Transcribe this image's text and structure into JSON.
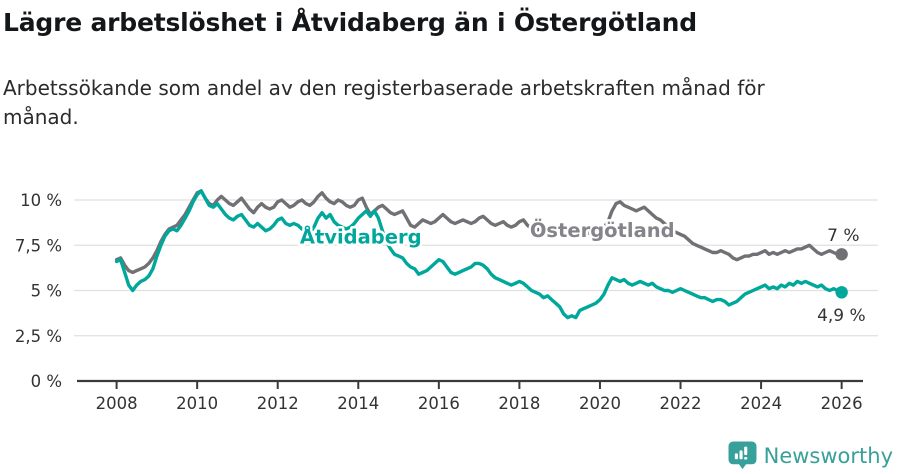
{
  "header": {
    "title": "Lägre arbetslöshet i Åtvidaberg än i Östergötland",
    "subtitle_lines": [
      "Arbetssökande som andel av den registerbaserade arbetskraften månad för",
      "månad."
    ]
  },
  "footer": {
    "brand": "Newsworthy"
  },
  "colors": {
    "accent_teal": "#00a79b",
    "line_gray": "#717175",
    "label_gray": "#84848a",
    "axis_text": "#333333",
    "gridline": "#e0e0e0",
    "logo_teal": "#38a09a"
  },
  "chart_data": {
    "type": "line",
    "title": "Lägre arbetslöshet i Åtvidaberg än i Östergötland",
    "ylabel": "",
    "xlabel": "",
    "grid": true,
    "ylim": [
      0,
      11.3
    ],
    "x_start": 2008.0,
    "x_step": 0.1,
    "x_ticks": [
      2008,
      2010,
      2012,
      2014,
      2016,
      2018,
      2020,
      2022,
      2024,
      2026
    ],
    "y_ticks": [
      {
        "value": 0,
        "label": "0 %"
      },
      {
        "value": 2.5,
        "label": "2,5 %"
      },
      {
        "value": 5,
        "label": "5 %"
      },
      {
        "value": 7.5,
        "label": "7,5 %"
      },
      {
        "value": 10,
        "label": "10 %"
      }
    ],
    "series": [
      {
        "name": "Östergötland",
        "color": "#717175",
        "end_label": "7 %",
        "latest_value": 7.0,
        "values": [
          6.7,
          6.8,
          6.4,
          6.1,
          6.0,
          6.1,
          6.2,
          6.3,
          6.5,
          6.8,
          7.2,
          7.7,
          8.1,
          8.4,
          8.5,
          8.6,
          8.9,
          9.2,
          9.6,
          10.0,
          10.4,
          10.5,
          10.1,
          9.8,
          9.7,
          10.0,
          10.2,
          10.0,
          9.8,
          9.7,
          9.9,
          10.1,
          9.8,
          9.5,
          9.3,
          9.6,
          9.8,
          9.6,
          9.5,
          9.6,
          9.9,
          10.0,
          9.8,
          9.6,
          9.7,
          9.9,
          10.0,
          9.8,
          9.7,
          9.9,
          10.2,
          10.4,
          10.1,
          9.9,
          9.8,
          10.0,
          9.9,
          9.7,
          9.6,
          9.7,
          10.0,
          10.1,
          9.6,
          9.2,
          9.4,
          9.6,
          9.7,
          9.5,
          9.3,
          9.2,
          9.3,
          9.4,
          9.0,
          8.6,
          8.5,
          8.7,
          8.9,
          8.8,
          8.7,
          8.8,
          9.0,
          9.2,
          9.0,
          8.8,
          8.7,
          8.8,
          8.9,
          8.8,
          8.7,
          8.8,
          9.0,
          9.1,
          8.9,
          8.7,
          8.6,
          8.7,
          8.8,
          8.6,
          8.5,
          8.6,
          8.8,
          8.9,
          8.6,
          8.4,
          8.3,
          8.4,
          8.5,
          8.3,
          8.2,
          8.2,
          8.4,
          8.5,
          8.3,
          8.1,
          8.0,
          8.2,
          8.3,
          8.2,
          8.1,
          8.2,
          8.4,
          8.5,
          8.8,
          9.4,
          9.8,
          9.9,
          9.7,
          9.6,
          9.5,
          9.4,
          9.5,
          9.6,
          9.4,
          9.2,
          9.0,
          8.9,
          8.7,
          8.5,
          8.3,
          8.2,
          8.1,
          8.0,
          7.8,
          7.6,
          7.5,
          7.4,
          7.3,
          7.2,
          7.1,
          7.1,
          7.2,
          7.1,
          7.0,
          6.8,
          6.7,
          6.8,
          6.9,
          6.9,
          7.0,
          7.0,
          7.1,
          7.2,
          7.0,
          7.1,
          7.0,
          7.1,
          7.2,
          7.1,
          7.2,
          7.3,
          7.3,
          7.4,
          7.5,
          7.3,
          7.1,
          7.0,
          7.1,
          7.2,
          7.1,
          7.0,
          7.0
        ]
      },
      {
        "name": "Åtvidaberg",
        "color": "#00a79b",
        "end_label": "4,9 %",
        "latest_value": 4.9,
        "values": [
          6.6,
          6.7,
          6.0,
          5.3,
          5.0,
          5.3,
          5.5,
          5.6,
          5.8,
          6.2,
          6.9,
          7.5,
          8.0,
          8.3,
          8.4,
          8.3,
          8.6,
          9.0,
          9.4,
          9.9,
          10.3,
          10.5,
          10.1,
          9.7,
          9.6,
          9.8,
          9.5,
          9.2,
          9.0,
          8.9,
          9.1,
          9.2,
          8.9,
          8.6,
          8.5,
          8.7,
          8.5,
          8.3,
          8.4,
          8.6,
          8.9,
          9.0,
          8.7,
          8.6,
          8.7,
          8.6,
          8.4,
          8.3,
          8.2,
          8.5,
          9.0,
          9.3,
          9.0,
          9.2,
          8.8,
          8.6,
          8.5,
          8.4,
          8.5,
          8.7,
          9.0,
          9.2,
          9.4,
          9.1,
          9.4,
          9.0,
          8.3,
          7.7,
          7.3,
          7.0,
          6.9,
          6.8,
          6.5,
          6.3,
          6.2,
          5.9,
          6.0,
          6.1,
          6.3,
          6.5,
          6.7,
          6.6,
          6.3,
          6.0,
          5.9,
          6.0,
          6.1,
          6.2,
          6.3,
          6.5,
          6.5,
          6.4,
          6.2,
          5.9,
          5.7,
          5.6,
          5.5,
          5.4,
          5.3,
          5.4,
          5.5,
          5.4,
          5.2,
          5.0,
          4.9,
          4.8,
          4.6,
          4.7,
          4.5,
          4.3,
          4.1,
          3.7,
          3.5,
          3.6,
          3.5,
          3.9,
          4.0,
          4.1,
          4.2,
          4.3,
          4.5,
          4.8,
          5.3,
          5.7,
          5.6,
          5.5,
          5.6,
          5.4,
          5.3,
          5.4,
          5.5,
          5.4,
          5.3,
          5.4,
          5.2,
          5.1,
          5.0,
          5.0,
          4.9,
          5.0,
          5.1,
          5.0,
          4.9,
          4.8,
          4.7,
          4.6,
          4.6,
          4.5,
          4.4,
          4.5,
          4.5,
          4.4,
          4.2,
          4.3,
          4.4,
          4.6,
          4.8,
          4.9,
          5.0,
          5.1,
          5.2,
          5.3,
          5.1,
          5.2,
          5.1,
          5.3,
          5.2,
          5.4,
          5.3,
          5.5,
          5.4,
          5.5,
          5.4,
          5.3,
          5.2,
          5.3,
          5.1,
          5.0,
          5.1,
          5.0,
          4.9
        ]
      }
    ],
    "series_labels": [
      {
        "text": "Åtvidaberg",
        "year": 2012.55,
        "value": 7.6,
        "color": "#00a79b"
      },
      {
        "text": "Östergötland",
        "year": 2018.26,
        "value": 7.96,
        "color": "#84848a"
      }
    ],
    "end_labels": [
      {
        "text": "7 %",
        "year": 2025.64,
        "value": 7.73,
        "color": "#333333"
      },
      {
        "text": "4,9 %",
        "year": 2025.39,
        "value": 3.31,
        "color": "#333333"
      }
    ],
    "legend_position": "inline-labels"
  }
}
